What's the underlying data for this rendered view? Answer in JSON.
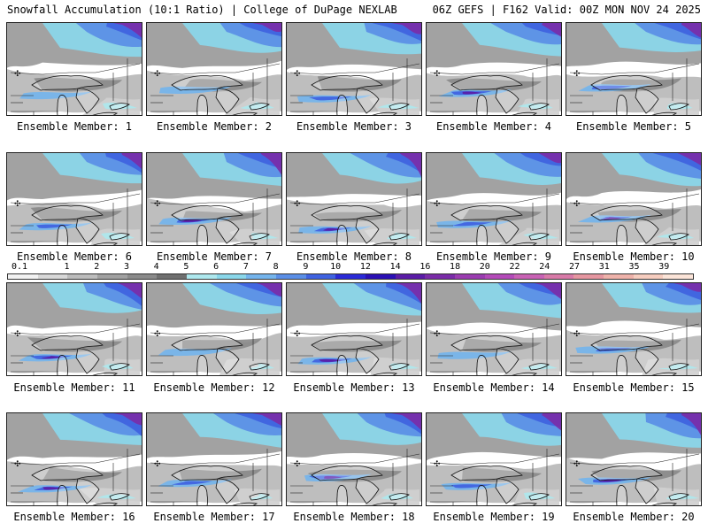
{
  "header": {
    "title": "Snowfall Accumulation (10:1 Ratio) | College of DuPage NEXLAB",
    "run_info": "06Z GEFS | F162 Valid: 00Z MON NOV 24 2025"
  },
  "colorbar": {
    "labels": [
      "0.1",
      "1",
      "2",
      "3",
      "4",
      "5",
      "6",
      "7",
      "8",
      "9",
      "10",
      "12",
      "14",
      "16",
      "18",
      "20",
      "22",
      "24",
      "27",
      "31",
      "35",
      "39"
    ],
    "colors": [
      "#f2f2f2",
      "#d8d8d8",
      "#bcbcbc",
      "#a0a0a0",
      "#8a8a8a",
      "#6f6f6f",
      "#aee8ee",
      "#8ad7ea",
      "#74b4ec",
      "#5a8ee6",
      "#3f62e0",
      "#2a2ad6",
      "#2a10b4",
      "#5a1ca6",
      "#7a2ca8",
      "#9a3cb0",
      "#b34ab8",
      "#c862b4",
      "#d87aa8",
      "#e596a0",
      "#eeb2aa",
      "#f6cdbf",
      "#fbe4d8"
    ]
  },
  "members": [
    {
      "label": "Ensemble Member: 1",
      "snow": "light"
    },
    {
      "label": "Ensemble Member: 2",
      "snow": "light"
    },
    {
      "label": "Ensemble Member: 3",
      "snow": "medium"
    },
    {
      "label": "Ensemble Member: 4",
      "snow": "heavy"
    },
    {
      "label": "Ensemble Member: 5",
      "snow": "medium"
    },
    {
      "label": "Ensemble Member: 6",
      "snow": "medium"
    },
    {
      "label": "Ensemble Member: 7",
      "snow": "heavy"
    },
    {
      "label": "Ensemble Member: 8",
      "snow": "heavy"
    },
    {
      "label": "Ensemble Member: 9",
      "snow": "medium"
    },
    {
      "label": "Ensemble Member: 10",
      "snow": "heavy"
    },
    {
      "label": "Ensemble Member: 11",
      "snow": "heavy"
    },
    {
      "label": "Ensemble Member: 12",
      "snow": "light"
    },
    {
      "label": "Ensemble Member: 13",
      "snow": "heavy"
    },
    {
      "label": "Ensemble Member: 14",
      "snow": "light"
    },
    {
      "label": "Ensemble Member: 15",
      "snow": "medium"
    },
    {
      "label": "Ensemble Member: 16",
      "snow": "heavy"
    },
    {
      "label": "Ensemble Member: 17",
      "snow": "medium"
    },
    {
      "label": "Ensemble Member: 18",
      "snow": "heavy"
    },
    {
      "label": "Ensemble Member: 19",
      "snow": "medium"
    },
    {
      "label": "Ensemble Member: 20",
      "snow": "heavy"
    }
  ]
}
